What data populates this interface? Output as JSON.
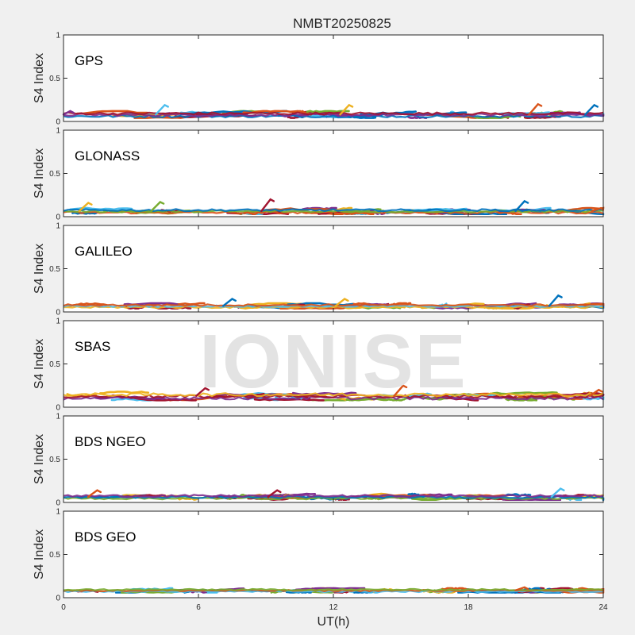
{
  "title": "NMBT20250825",
  "watermark": "IONISE",
  "chart_data": {
    "type": "scatter",
    "title": "NMBT20250825",
    "xlabel": "UT(h)",
    "xlim": [
      0,
      24
    ],
    "xticks": [
      "0",
      "6",
      "12",
      "18",
      "24"
    ],
    "ylabel": "S4 Index",
    "ylim": [
      0,
      1
    ],
    "yticks": [
      "0",
      "0.5",
      "1"
    ],
    "series_colors": [
      "#0072bd",
      "#d95319",
      "#edb120",
      "#7e2f8e",
      "#77ac30",
      "#4dbeee",
      "#a2142f"
    ],
    "panels": [
      {
        "label": "GPS",
        "typical_s4": [
          0.04,
          0.12
        ],
        "peaks": [
          {
            "x": 0.3,
            "y": 0.12
          },
          {
            "x": 4.5,
            "y": 0.19
          },
          {
            "x": 12.7,
            "y": 0.19
          },
          {
            "x": 21.1,
            "y": 0.2
          },
          {
            "x": 23.6,
            "y": 0.19
          }
        ]
      },
      {
        "label": "GLONASS",
        "typical_s4": [
          0.03,
          0.1
        ],
        "peaks": [
          {
            "x": 1.1,
            "y": 0.16
          },
          {
            "x": 4.3,
            "y": 0.17
          },
          {
            "x": 9.2,
            "y": 0.2
          },
          {
            "x": 20.5,
            "y": 0.18
          },
          {
            "x": 23.9,
            "y": 0.1
          }
        ]
      },
      {
        "label": "GALILEO",
        "typical_s4": [
          0.04,
          0.1
        ],
        "peaks": [
          {
            "x": 7.5,
            "y": 0.15
          },
          {
            "x": 12.5,
            "y": 0.15
          },
          {
            "x": 22.0,
            "y": 0.19
          }
        ]
      },
      {
        "label": "SBAS",
        "typical_s4": [
          0.08,
          0.18
        ],
        "peaks": [
          {
            "x": 15.1,
            "y": 0.25
          },
          {
            "x": 6.3,
            "y": 0.22
          },
          {
            "x": 23.8,
            "y": 0.2
          }
        ]
      },
      {
        "label": "BDS NGEO",
        "typical_s4": [
          0.03,
          0.1
        ],
        "peaks": [
          {
            "x": 1.5,
            "y": 0.14
          },
          {
            "x": 9.5,
            "y": 0.14
          },
          {
            "x": 22.1,
            "y": 0.16
          }
        ]
      },
      {
        "label": "BDS GEO",
        "typical_s4": [
          0.06,
          0.11
        ],
        "peaks": [
          {
            "x": 20.5,
            "y": 0.12
          }
        ]
      }
    ]
  }
}
